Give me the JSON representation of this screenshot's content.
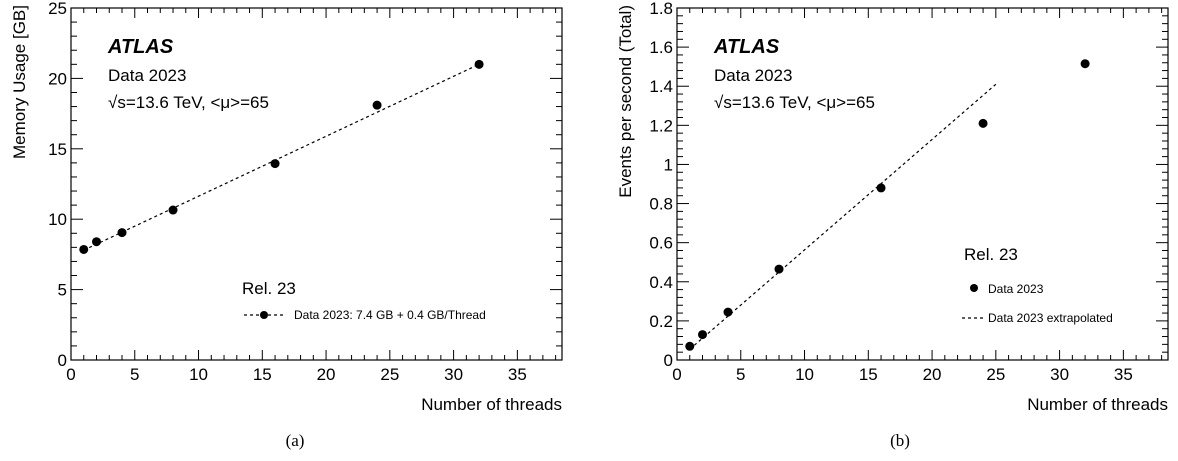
{
  "chart_data": [
    {
      "type": "scatter",
      "panel_caption": "(a)",
      "xlabel": "Number of threads",
      "ylabel": "Memory Usage [GB]",
      "xlim": [
        0,
        38.5
      ],
      "ylim": [
        0,
        25
      ],
      "xticks": [
        0,
        5,
        10,
        15,
        20,
        25,
        30,
        35
      ],
      "yticks": [
        0,
        5,
        10,
        15,
        20,
        25
      ],
      "experiment": "ATLAS",
      "info_lines": [
        "Data 2023",
        "√s=13.6 TeV, <μ>=65"
      ],
      "legend_title": "Rel. 23",
      "series": [
        {
          "name": "Data 2023: 7.4 GB + 0.4 GB/Thread",
          "x": [
            1,
            2,
            4,
            8,
            16,
            24,
            32
          ],
          "y": [
            7.85,
            8.4,
            9.05,
            10.65,
            13.95,
            18.1,
            21.0
          ]
        }
      ],
      "fit": {
        "x": [
          1,
          32
        ],
        "y": [
          7.8,
          21.0
        ]
      }
    },
    {
      "type": "scatter",
      "panel_caption": "(b)",
      "xlabel": "Number of threads",
      "ylabel": "Events per second (Total)",
      "xlim": [
        0,
        38.5
      ],
      "ylim": [
        0,
        1.8
      ],
      "xticks": [
        0,
        5,
        10,
        15,
        20,
        25,
        30,
        35
      ],
      "yticks": [
        0,
        0.2,
        0.4,
        0.6,
        0.8,
        1,
        1.2,
        1.4,
        1.6,
        1.8
      ],
      "ytick_labels": [
        "0",
        "0.2",
        "0.4",
        "0.6",
        "0.8",
        "1",
        "1.2",
        "1.4",
        "1.6",
        "1.8"
      ],
      "experiment": "ATLAS",
      "info_lines": [
        "Data 2023",
        "√s=13.6 TeV, <μ>=65"
      ],
      "legend_title": "Rel. 23",
      "series": [
        {
          "name": "Data 2023",
          "x": [
            1,
            2,
            4,
            8,
            16,
            24,
            32
          ],
          "y": [
            0.07,
            0.13,
            0.245,
            0.465,
            0.88,
            1.21,
            1.515
          ]
        }
      ],
      "fit": {
        "name": "Data 2023 extrapolated",
        "x": [
          1,
          25
        ],
        "y": [
          0.055,
          1.41
        ]
      }
    }
  ]
}
